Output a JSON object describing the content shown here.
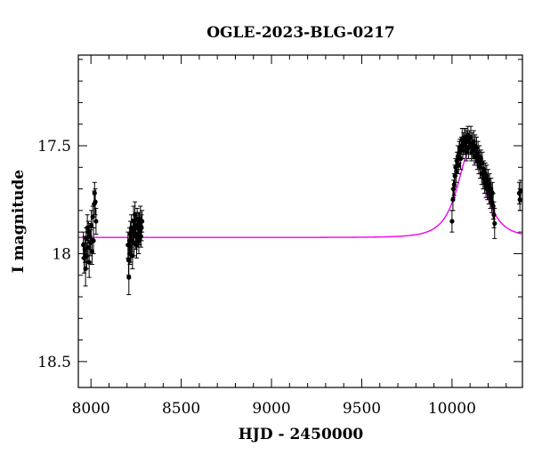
{
  "chart_data": {
    "type": "scatter",
    "title": "OGLE-2023-BLG-0217",
    "xlabel": "HJD - 2450000",
    "ylabel": "I magnitude",
    "xlim": [
      7930,
      10390
    ],
    "ylim": [
      18.62,
      17.08
    ],
    "y_inverted": true,
    "xticks": [
      8000,
      8500,
      9000,
      9500,
      10000
    ],
    "yticks": [
      17.5,
      18,
      18.5
    ],
    "xtick_labels": [
      "8000",
      "8500",
      "9000",
      "9500",
      "10000"
    ],
    "ytick_labels": [
      "17.5",
      "18",
      "18.5"
    ],
    "colors": {
      "data": "#000000",
      "model": "#ee00ee"
    },
    "series": [
      {
        "type": "points_with_errorbars",
        "points": [
          [
            7958,
            17.96,
            0.06
          ],
          [
            7962,
            18.02,
            0.07
          ],
          [
            7966,
            17.98,
            0.06
          ],
          [
            7970,
            18.07,
            0.08
          ],
          [
            7973,
            17.93,
            0.05
          ],
          [
            7976,
            18.01,
            0.06
          ],
          [
            7980,
            17.88,
            0.06
          ],
          [
            7983,
            17.97,
            0.07
          ],
          [
            7986,
            17.9,
            0.05
          ],
          [
            7990,
            18.04,
            0.07
          ],
          [
            7994,
            17.92,
            0.06
          ],
          [
            7998,
            17.95,
            0.06
          ],
          [
            8002,
            17.87,
            0.07
          ],
          [
            8006,
            17.99,
            0.06
          ],
          [
            8010,
            17.83,
            0.05
          ],
          [
            8014,
            17.94,
            0.06
          ],
          [
            8018,
            17.77,
            0.06
          ],
          [
            8020,
            17.72,
            0.05
          ],
          [
            8024,
            17.76,
            0.06
          ],
          [
            8028,
            17.85,
            0.06
          ],
          [
            8205,
            17.96,
            0.06
          ],
          [
            8208,
            18.03,
            0.07
          ],
          [
            8210,
            18.11,
            0.08
          ],
          [
            8213,
            17.94,
            0.06
          ],
          [
            8216,
            18.0,
            0.05
          ],
          [
            8218,
            17.91,
            0.06
          ],
          [
            8221,
            17.97,
            0.07
          ],
          [
            8224,
            17.88,
            0.06
          ],
          [
            8227,
            17.94,
            0.05
          ],
          [
            8230,
            18.01,
            0.06
          ],
          [
            8233,
            17.9,
            0.06
          ],
          [
            8236,
            17.85,
            0.07
          ],
          [
            8239,
            17.95,
            0.06
          ],
          [
            8242,
            17.87,
            0.05
          ],
          [
            8244,
            17.82,
            0.06
          ],
          [
            8247,
            17.92,
            0.06
          ],
          [
            8250,
            17.88,
            0.07
          ],
          [
            8253,
            17.96,
            0.06
          ],
          [
            8256,
            17.84,
            0.05
          ],
          [
            8259,
            17.91,
            0.06
          ],
          [
            8262,
            17.87,
            0.06
          ],
          [
            8265,
            17.94,
            0.06
          ],
          [
            8268,
            17.86,
            0.05
          ],
          [
            8271,
            17.9,
            0.06
          ],
          [
            8274,
            17.84,
            0.06
          ],
          [
            8277,
            17.92,
            0.05
          ],
          [
            8280,
            17.88,
            0.06
          ],
          [
            8283,
            17.85,
            0.05
          ],
          [
            10000,
            17.85,
            0.05
          ],
          [
            10005,
            17.75,
            0.05
          ],
          [
            10008,
            17.7,
            0.04
          ],
          [
            10012,
            17.68,
            0.05
          ],
          [
            10016,
            17.64,
            0.05
          ],
          [
            10020,
            17.6,
            0.04
          ],
          [
            10024,
            17.62,
            0.05
          ],
          [
            10028,
            17.57,
            0.04
          ],
          [
            10032,
            17.55,
            0.05
          ],
          [
            10036,
            17.59,
            0.04
          ],
          [
            10040,
            17.53,
            0.05
          ],
          [
            10044,
            17.51,
            0.04
          ],
          [
            10048,
            17.56,
            0.05
          ],
          [
            10052,
            17.5,
            0.04
          ],
          [
            10056,
            17.47,
            0.05
          ],
          [
            10060,
            17.52,
            0.04
          ],
          [
            10064,
            17.49,
            0.05
          ],
          [
            10068,
            17.46,
            0.04
          ],
          [
            10072,
            17.5,
            0.04
          ],
          [
            10076,
            17.47,
            0.05
          ],
          [
            10080,
            17.53,
            0.04
          ],
          [
            10084,
            17.48,
            0.05
          ],
          [
            10088,
            17.45,
            0.04
          ],
          [
            10092,
            17.51,
            0.05
          ],
          [
            10096,
            17.47,
            0.04
          ],
          [
            10100,
            17.5,
            0.04
          ],
          [
            10104,
            17.46,
            0.05
          ],
          [
            10108,
            17.53,
            0.04
          ],
          [
            10112,
            17.49,
            0.05
          ],
          [
            10116,
            17.52,
            0.04
          ],
          [
            10120,
            17.48,
            0.05
          ],
          [
            10124,
            17.55,
            0.04
          ],
          [
            10128,
            17.5,
            0.05
          ],
          [
            10132,
            17.54,
            0.04
          ],
          [
            10136,
            17.51,
            0.05
          ],
          [
            10140,
            17.57,
            0.04
          ],
          [
            10144,
            17.53,
            0.05
          ],
          [
            10148,
            17.59,
            0.04
          ],
          [
            10152,
            17.55,
            0.05
          ],
          [
            10156,
            17.6,
            0.05
          ],
          [
            10160,
            17.56,
            0.04
          ],
          [
            10164,
            17.63,
            0.05
          ],
          [
            10168,
            17.58,
            0.05
          ],
          [
            10172,
            17.65,
            0.05
          ],
          [
            10176,
            17.61,
            0.04
          ],
          [
            10180,
            17.67,
            0.05
          ],
          [
            10184,
            17.63,
            0.05
          ],
          [
            10188,
            17.69,
            0.05
          ],
          [
            10192,
            17.64,
            0.05
          ],
          [
            10196,
            17.7,
            0.05
          ],
          [
            10200,
            17.66,
            0.05
          ],
          [
            10204,
            17.72,
            0.05
          ],
          [
            10208,
            17.68,
            0.05
          ],
          [
            10212,
            17.74,
            0.05
          ],
          [
            10216,
            17.7,
            0.05
          ],
          [
            10220,
            17.76,
            0.05
          ],
          [
            10224,
            17.72,
            0.05
          ],
          [
            10228,
            17.78,
            0.06
          ],
          [
            10232,
            17.82,
            0.06
          ],
          [
            10236,
            17.86,
            0.07
          ],
          [
            10372,
            17.72,
            0.05
          ],
          [
            10376,
            17.75,
            0.05
          ],
          [
            10380,
            17.71,
            0.05
          ]
        ]
      },
      {
        "type": "model_curve",
        "baseline": 17.925,
        "peak_mag": 17.51,
        "t0": 10105,
        "tE": 95
      }
    ],
    "grid": false,
    "legend": "none"
  }
}
